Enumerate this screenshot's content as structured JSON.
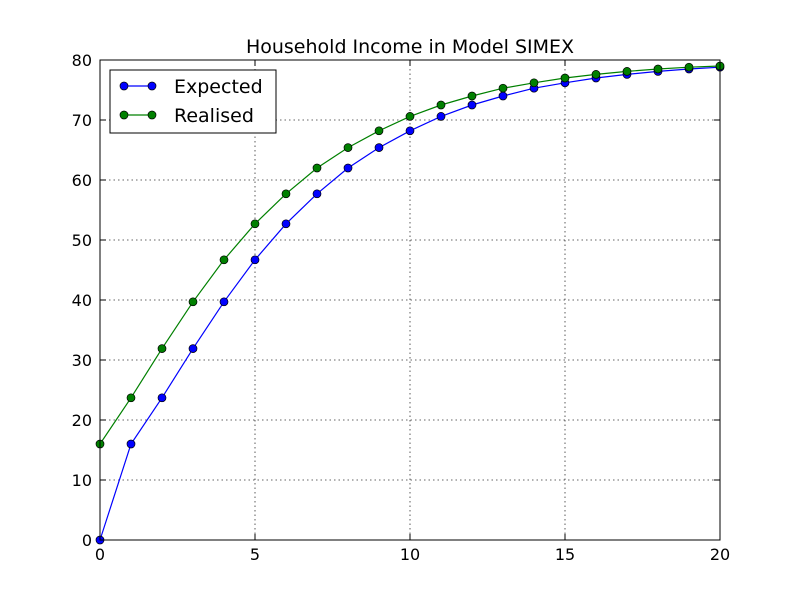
{
  "chart_data": {
    "type": "line",
    "title": "Household Income in Model SIMEX",
    "xlabel": "",
    "ylabel": "",
    "xlim": [
      0,
      20
    ],
    "ylim": [
      0,
      80
    ],
    "xticks": [
      0,
      5,
      10,
      15,
      20
    ],
    "yticks": [
      0,
      10,
      20,
      30,
      40,
      50,
      60,
      70,
      80
    ],
    "grid": true,
    "legend_position": "top-left",
    "x": [
      0,
      1,
      2,
      3,
      4,
      5,
      6,
      7,
      8,
      9,
      10,
      11,
      12,
      13,
      14,
      15,
      16,
      17,
      18,
      19,
      20
    ],
    "series": [
      {
        "name": "Expected",
        "color": "#0000ff",
        "marker": "circle",
        "values": [
          0,
          16.0,
          23.7,
          31.9,
          39.7,
          46.7,
          52.7,
          57.7,
          62.0,
          65.4,
          68.2,
          70.6,
          72.5,
          74.0,
          75.3,
          76.2,
          77.0,
          77.6,
          78.1,
          78.5,
          78.8
        ]
      },
      {
        "name": "Realised",
        "color": "#008000",
        "marker": "circle",
        "values": [
          16.0,
          23.7,
          31.9,
          39.7,
          46.7,
          52.7,
          57.7,
          62.0,
          65.4,
          68.2,
          70.6,
          72.5,
          74.0,
          75.3,
          76.2,
          77.0,
          77.6,
          78.1,
          78.5,
          78.8,
          79.0
        ]
      }
    ]
  }
}
